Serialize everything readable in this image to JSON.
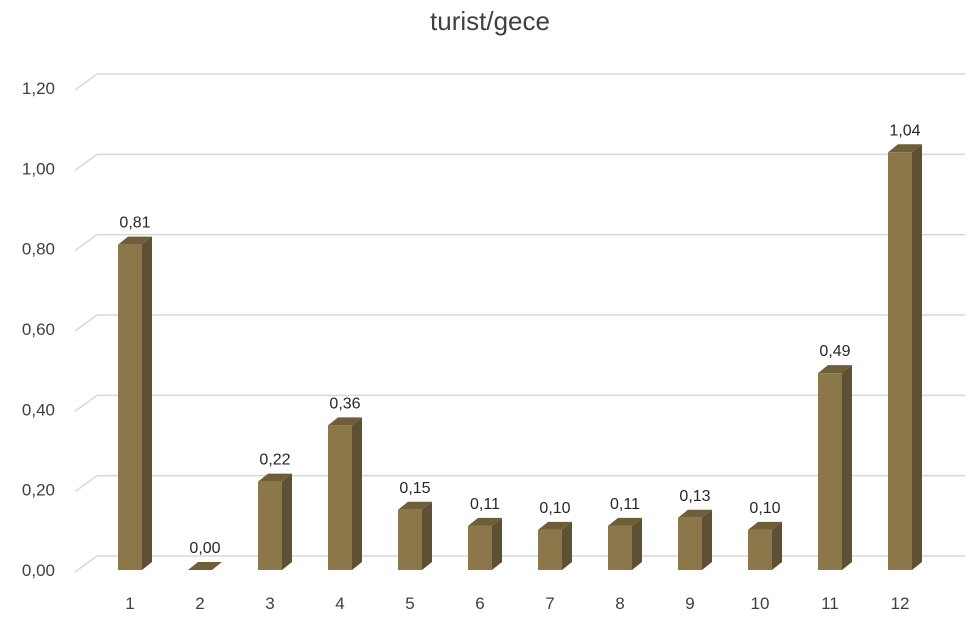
{
  "chart_data": {
    "type": "bar",
    "title": "turist/gece",
    "xlabel": "",
    "ylabel": "",
    "categories": [
      "1",
      "2",
      "3",
      "4",
      "5",
      "6",
      "7",
      "8",
      "9",
      "10",
      "11",
      "12"
    ],
    "values": [
      0.81,
      0.0,
      0.22,
      0.36,
      0.15,
      0.11,
      0.1,
      0.11,
      0.13,
      0.1,
      0.49,
      1.04
    ],
    "data_labels": [
      "0,81",
      "0,00",
      "0,22",
      "0,36",
      "0,15",
      "0,11",
      "0,10",
      "0,11",
      "0,13",
      "0,10",
      "0,49",
      "1,04"
    ],
    "yticks": [
      0,
      0.2,
      0.4,
      0.6,
      0.8,
      1.0,
      1.2
    ],
    "ytick_labels": [
      "0,00",
      "0,20",
      "0,40",
      "0,60",
      "0,80",
      "1,00",
      "1,20"
    ],
    "ylim": [
      0,
      1.2
    ],
    "grid": true,
    "legend": "none",
    "style": "3d-column",
    "colors": {
      "front": "#8B7749",
      "side": "#5E5032",
      "top": "#6E5E3A",
      "grid": "#D9D9D9"
    }
  }
}
